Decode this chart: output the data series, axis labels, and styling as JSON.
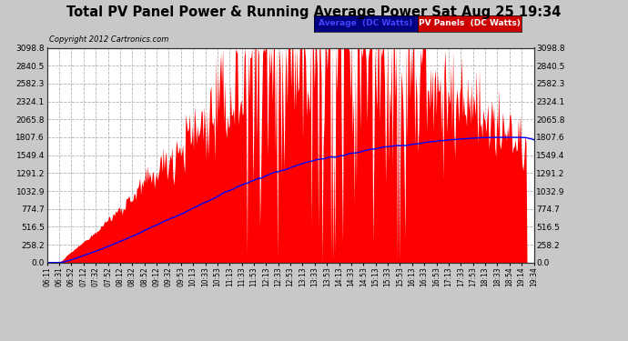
{
  "title": "Total PV Panel Power & Running Average Power Sat Aug 25 19:34",
  "copyright": "Copyright 2012 Cartronics.com",
  "legend_avg": "Average  (DC Watts)",
  "legend_pv": "PV Panels  (DC Watts)",
  "ylabel_ticks": [
    0.0,
    258.2,
    516.5,
    774.7,
    1032.9,
    1291.2,
    1549.4,
    1807.6,
    2065.8,
    2324.1,
    2582.3,
    2840.5,
    3098.8
  ],
  "x_tick_labels": [
    "06:11",
    "06:31",
    "06:52",
    "07:12",
    "07:32",
    "07:52",
    "08:12",
    "08:32",
    "08:52",
    "09:12",
    "09:32",
    "09:53",
    "10:13",
    "10:33",
    "10:53",
    "11:13",
    "11:33",
    "11:53",
    "12:13",
    "12:33",
    "12:53",
    "13:13",
    "13:33",
    "13:53",
    "14:13",
    "14:33",
    "14:53",
    "15:13",
    "15:33",
    "15:53",
    "16:13",
    "16:33",
    "16:53",
    "17:13",
    "17:33",
    "17:53",
    "18:13",
    "18:33",
    "18:54",
    "19:14",
    "19:34"
  ],
  "plot_bg_color": "#ffffff",
  "outer_bg_color": "#c8c8c8",
  "pv_color": "#ff0000",
  "avg_color": "#0000ff",
  "grid_color": "#aaaaaa",
  "title_color": "#000000",
  "ymax": 3098.8,
  "ymin": 0.0,
  "n_points": 500,
  "legend_avg_bg": "#000080",
  "legend_pv_bg": "#cc0000"
}
